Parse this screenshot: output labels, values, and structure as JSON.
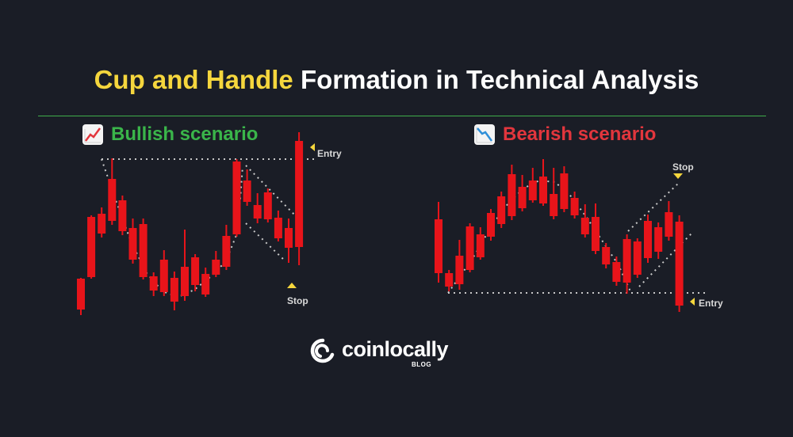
{
  "title": {
    "highlight": "Cup and Handle",
    "rest": "Formation in Technical Analysis"
  },
  "bullish": {
    "label": "Bullish scenario",
    "entry": "Entry",
    "stop": "Stop"
  },
  "bearish": {
    "label": "Bearish scenario",
    "entry": "Entry",
    "stop": "Stop"
  },
  "logo": {
    "name": "coinlocally",
    "sub": "BLOG"
  },
  "colors": {
    "up": "#22d420",
    "down": "#e8141a",
    "highlight": "#f5d63d",
    "rule": "#3fae4a",
    "background": "#1a1d26"
  },
  "bullish_candles": [
    {
      "o": 352,
      "c": 391,
      "h": 351,
      "l": 398
    },
    {
      "o": 274,
      "c": 350,
      "h": 272,
      "l": 352
    },
    {
      "o": 270,
      "c": 295,
      "h": 262,
      "l": 300
    },
    {
      "o": 226,
      "c": 279,
      "h": 200,
      "l": 284
    },
    {
      "o": 253,
      "c": 292,
      "h": 247,
      "l": 297
    },
    {
      "o": 288,
      "c": 328,
      "h": 276,
      "l": 333
    },
    {
      "o": 283,
      "c": 350,
      "h": 276,
      "l": 353
    },
    {
      "o": 349,
      "c": 367,
      "h": 344,
      "l": 374
    },
    {
      "o": 328,
      "c": 369,
      "h": 316,
      "l": 374
    },
    {
      "o": 351,
      "c": 381,
      "h": 343,
      "l": 392
    },
    {
      "o": 337,
      "c": 374,
      "h": 290,
      "l": 380
    },
    {
      "o": 325,
      "c": 360,
      "h": 321,
      "l": 368
    },
    {
      "o": 346,
      "c": 372,
      "h": 338,
      "l": 375
    },
    {
      "o": 328,
      "c": 347,
      "h": 317,
      "l": 350
    },
    {
      "o": 298,
      "c": 337,
      "h": 284,
      "l": 341
    },
    {
      "o": 204,
      "c": 296,
      "h": 201,
      "l": 299
    },
    {
      "o": 228,
      "c": 255,
      "h": 214,
      "l": 260
    },
    {
      "o": 259,
      "c": 276,
      "h": 244,
      "l": 282
    },
    {
      "o": 243,
      "c": 277,
      "h": 238,
      "l": 281
    },
    {
      "o": 275,
      "c": 301,
      "h": 266,
      "l": 305
    },
    {
      "o": 288,
      "c": 313,
      "h": 276,
      "l": 332
    },
    {
      "o": 178,
      "c": 312,
      "h": 167,
      "l": 335
    }
  ],
  "bearish_candles": [
    {
      "o": 277,
      "c": 345,
      "h": 255,
      "l": 357
    },
    {
      "o": 345,
      "c": 362,
      "h": 341,
      "l": 368
    },
    {
      "o": 323,
      "c": 359,
      "h": 303,
      "l": 366
    },
    {
      "o": 286,
      "c": 341,
      "h": 282,
      "l": 344
    },
    {
      "o": 296,
      "c": 325,
      "h": 287,
      "l": 328
    },
    {
      "o": 269,
      "c": 299,
      "h": 264,
      "l": 304
    },
    {
      "o": 248,
      "c": 283,
      "h": 242,
      "l": 288
    },
    {
      "o": 220,
      "c": 273,
      "h": 208,
      "l": 278
    },
    {
      "o": 236,
      "c": 263,
      "h": 221,
      "l": 267
    },
    {
      "o": 228,
      "c": 253,
      "h": 212,
      "l": 256
    },
    {
      "o": 223,
      "c": 257,
      "h": 201,
      "l": 260
    },
    {
      "o": 245,
      "c": 273,
      "h": 212,
      "l": 277
    },
    {
      "o": 219,
      "c": 264,
      "h": 210,
      "l": 268
    },
    {
      "o": 250,
      "c": 272,
      "h": 242,
      "l": 276
    },
    {
      "o": 275,
      "c": 296,
      "h": 258,
      "l": 300
    },
    {
      "o": 274,
      "c": 317,
      "h": 257,
      "l": 321
    },
    {
      "o": 312,
      "c": 334,
      "h": 307,
      "l": 339
    },
    {
      "o": 331,
      "c": 356,
      "h": 324,
      "l": 361
    },
    {
      "o": 302,
      "c": 357,
      "h": 296,
      "l": 371
    },
    {
      "o": 305,
      "c": 347,
      "h": 301,
      "l": 351
    },
    {
      "o": 279,
      "c": 326,
      "h": 271,
      "l": 332
    },
    {
      "o": 287,
      "c": 318,
      "h": 281,
      "l": 327
    },
    {
      "o": 268,
      "c": 299,
      "h": 254,
      "l": 304
    },
    {
      "o": 280,
      "c": 386,
      "h": 272,
      "l": 394
    }
  ]
}
